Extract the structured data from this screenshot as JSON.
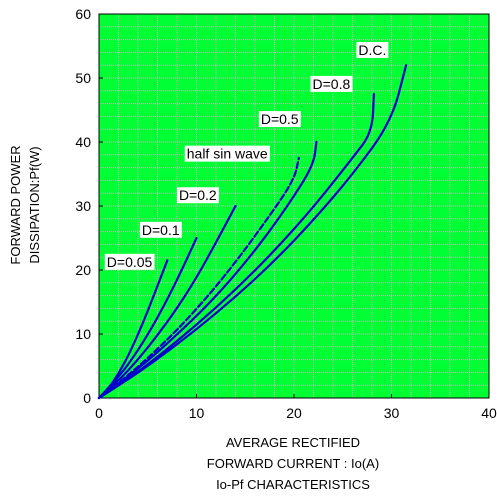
{
  "chart_data": {
    "type": "line",
    "title": "",
    "caption": "Io-Pf CHARACTERISTICS",
    "xlabel_lines": [
      "AVERAGE RECTIFIED",
      "FORWARD CURRENT : Io(A)"
    ],
    "ylabel_lines": [
      "FORWARD POWER",
      "DISSIPATION:Pf(W)"
    ],
    "xlim": [
      0,
      40
    ],
    "ylim": [
      0,
      60
    ],
    "x_ticks": [
      0,
      10,
      20,
      30,
      40
    ],
    "y_ticks": [
      0,
      10,
      20,
      30,
      40,
      50,
      60
    ],
    "grid": true,
    "colors": {
      "background": "#00ff33",
      "grid": "#bbbbbb",
      "series": "#0000cc",
      "axis": "#000000"
    },
    "series": [
      {
        "name": "D=0.05",
        "dashed": false,
        "points": [
          [
            0,
            0
          ],
          [
            1,
            1.5
          ],
          [
            2,
            3.8
          ],
          [
            3,
            6.6
          ],
          [
            4,
            9.9
          ],
          [
            5,
            13.6
          ],
          [
            6,
            17.5
          ],
          [
            7,
            21.5
          ]
        ]
      },
      {
        "name": "D=0.1",
        "dashed": false,
        "points": [
          [
            0,
            0
          ],
          [
            2,
            3.2
          ],
          [
            4,
            7.4
          ],
          [
            6,
            12.5
          ],
          [
            8,
            18.4
          ],
          [
            10,
            25
          ]
        ]
      },
      {
        "name": "D=0.2",
        "dashed": false,
        "points": [
          [
            0,
            0
          ],
          [
            2,
            2.7
          ],
          [
            4,
            6.0
          ],
          [
            6,
            9.8
          ],
          [
            8,
            14.0
          ],
          [
            10,
            18.8
          ],
          [
            12,
            24.3
          ],
          [
            14,
            30
          ]
        ]
      },
      {
        "name": "half sin wave",
        "dashed": true,
        "points": [
          [
            0,
            0
          ],
          [
            2,
            2.3
          ],
          [
            5,
            6.2
          ],
          [
            8,
            10.6
          ],
          [
            11,
            15.6
          ],
          [
            14,
            21.2
          ],
          [
            17,
            27.4
          ],
          [
            20,
            34
          ],
          [
            20.5,
            37.5
          ]
        ]
      },
      {
        "name": "D=0.5",
        "dashed": false,
        "points": [
          [
            0,
            0
          ],
          [
            2,
            2.2
          ],
          [
            5,
            5.8
          ],
          [
            8,
            9.9
          ],
          [
            11,
            14.3
          ],
          [
            14,
            19.3
          ],
          [
            17,
            25
          ],
          [
            20,
            31.5
          ],
          [
            22,
            36.5
          ],
          [
            22.3,
            40
          ]
        ]
      },
      {
        "name": "D=0.8",
        "dashed": false,
        "points": [
          [
            0,
            0
          ],
          [
            3,
            3
          ],
          [
            6,
            6.4
          ],
          [
            10,
            11.4
          ],
          [
            14,
            16.9
          ],
          [
            18,
            23
          ],
          [
            22,
            29.8
          ],
          [
            26,
            37.5
          ],
          [
            28,
            41.5
          ],
          [
            28.2,
            47.5
          ]
        ]
      },
      {
        "name": "D.C.",
        "dashed": false,
        "points": [
          [
            0,
            0
          ],
          [
            3,
            2.9
          ],
          [
            6,
            6.1
          ],
          [
            10,
            10.7
          ],
          [
            14,
            15.8
          ],
          [
            18,
            21.4
          ],
          [
            22,
            27.8
          ],
          [
            26,
            34.9
          ],
          [
            30,
            43.2
          ],
          [
            31.5,
            52
          ]
        ]
      }
    ],
    "annotations": [
      {
        "text": "D=0.05",
        "x": 0.8,
        "y": 20.5
      },
      {
        "text": "D=0.1",
        "x": 4.4,
        "y": 25.5
      },
      {
        "text": "D=0.2",
        "x": 8.2,
        "y": 30.9
      },
      {
        "text": "half sin wave",
        "x": 9.0,
        "y": 37.4
      },
      {
        "text": "D=0.5",
        "x": 16.6,
        "y": 42.8
      },
      {
        "text": "D=0.8",
        "x": 21.9,
        "y": 48.3
      },
      {
        "text": "D.C.",
        "x": 26.6,
        "y": 53.6
      }
    ]
  }
}
